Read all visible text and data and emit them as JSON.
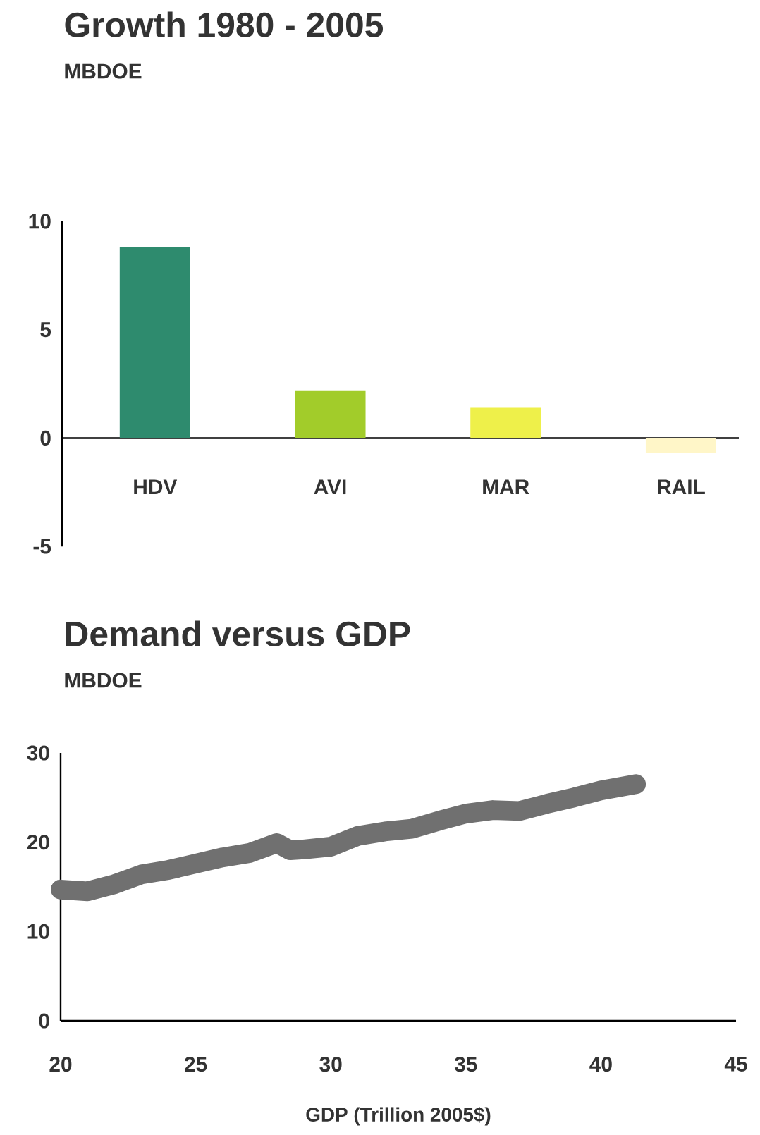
{
  "chart_data": [
    {
      "type": "bar",
      "title": "Growth 1980 - 2005",
      "subtitle": "MBDOE",
      "categories": [
        "HDV",
        "AVI",
        "MAR",
        "RAIL"
      ],
      "values": [
        8.8,
        2.2,
        1.4,
        -0.7
      ],
      "colors": [
        "#2e8b6e",
        "#a2cc2a",
        "#eef04a",
        "#fff6c8"
      ],
      "ylim": [
        -5,
        10
      ],
      "yticks": [
        -5,
        0,
        5,
        10
      ]
    },
    {
      "type": "line",
      "title": "Demand versus GDP",
      "subtitle": "MBDOE",
      "xlabel": "GDP (Trillion 2005$)",
      "color": "#707070",
      "x": [
        20,
        21,
        22,
        23,
        24,
        25,
        26,
        27,
        28,
        28.5,
        29,
        30,
        31,
        32,
        33,
        34,
        35,
        36,
        37,
        38,
        39,
        40,
        41.3
      ],
      "values": [
        14.7,
        14.5,
        15.3,
        16.4,
        16.9,
        17.6,
        18.3,
        18.8,
        19.9,
        19.1,
        19.2,
        19.5,
        20.7,
        21.2,
        21.5,
        22.4,
        23.2,
        23.6,
        23.5,
        24.3,
        25.0,
        25.8,
        26.5
      ],
      "xlim": [
        20,
        45
      ],
      "ylim": [
        0,
        30
      ],
      "xticks": [
        20,
        25,
        30,
        35,
        40,
        45
      ],
      "yticks": [
        0,
        10,
        20,
        30
      ]
    }
  ]
}
